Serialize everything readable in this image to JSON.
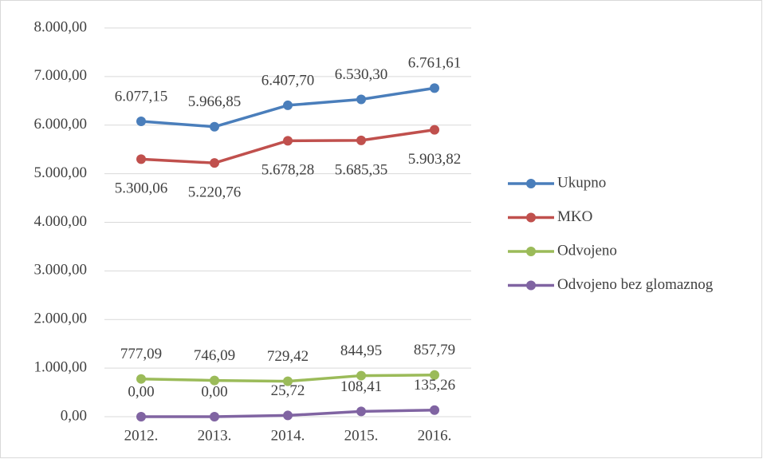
{
  "chart_data": {
    "type": "line",
    "categories": [
      "2012.",
      "2013.",
      "2014.",
      "2015.",
      "2016."
    ],
    "series": [
      {
        "name": "Ukupno",
        "color": "#4a7ebb",
        "values": [
          6077.15,
          5966.85,
          6407.7,
          6530.3,
          6761.61
        ],
        "value_labels": [
          "6.077,15",
          "5.966,85",
          "6.407,70",
          "6.530,30",
          "6.761,61"
        ]
      },
      {
        "name": "MKO",
        "color": "#c0504d",
        "values": [
          5300.06,
          5220.76,
          5678.28,
          5685.35,
          5903.82
        ],
        "value_labels": [
          "5.300,06",
          "5.220,76",
          "5.678,28",
          "5.685,35",
          "5.903,82"
        ]
      },
      {
        "name": "Odvojeno",
        "color": "#9bbb59",
        "values": [
          777.09,
          746.09,
          729.42,
          844.95,
          857.79
        ],
        "value_labels": [
          "777,09",
          "746,09",
          "729,42",
          "844,95",
          "857,79"
        ]
      },
      {
        "name": "Odvojeno bez glomaznog",
        "color": "#8064a2",
        "values": [
          0,
          0,
          25.72,
          108.41,
          135.26
        ],
        "value_labels": [
          "0,00",
          "0,00",
          "25,72",
          "108,41",
          "135,26"
        ]
      }
    ],
    "ylim": [
      0,
      8000
    ],
    "yticks": [
      {
        "value": 0,
        "label": "0,00"
      },
      {
        "value": 1000,
        "label": "1.000,00"
      },
      {
        "value": 2000,
        "label": "2.000,00"
      },
      {
        "value": 3000,
        "label": "3.000,00"
      },
      {
        "value": 4000,
        "label": "4.000,00"
      },
      {
        "value": 5000,
        "label": "5.000,00"
      },
      {
        "value": 6000,
        "label": "6.000,00"
      },
      {
        "value": 7000,
        "label": "7.000,00"
      },
      {
        "value": 8000,
        "label": "8.000,00"
      }
    ],
    "grid": true,
    "legend": "right"
  }
}
